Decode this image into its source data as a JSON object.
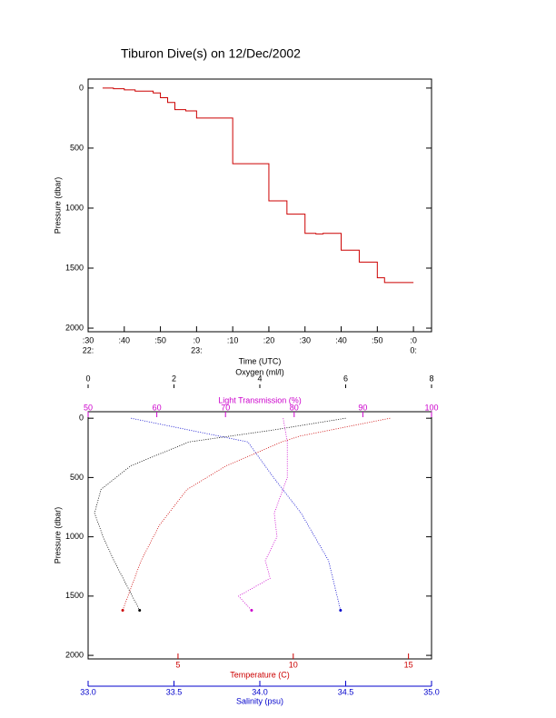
{
  "chart_data": [
    {
      "type": "line",
      "title": "Tiburon Dive(s) on 12/Dec/2002",
      "xlabel": "Time (UTC)",
      "ylabel": "Pressure (dbar)",
      "xlim": [
        30,
        125
      ],
      "ylim": [
        2030,
        -75
      ],
      "xticks": [
        {
          "value": 30,
          "label": ":30"
        },
        {
          "value": 40,
          "label": ":40"
        },
        {
          "value": 50,
          "label": ":50"
        },
        {
          "value": 60,
          "label": ":0"
        },
        {
          "value": 70,
          "label": ":10"
        },
        {
          "value": 80,
          "label": ":20"
        },
        {
          "value": 90,
          "label": ":30"
        },
        {
          "value": 100,
          "label": ":40"
        },
        {
          "value": 110,
          "label": ":50"
        },
        {
          "value": 120,
          "label": ":0"
        }
      ],
      "hour_labels": [
        {
          "value": 30,
          "label": "22:"
        },
        {
          "value": 60,
          "label": "23:"
        },
        {
          "value": 120,
          "label": "0:"
        }
      ],
      "yticks": [
        0,
        500,
        1000,
        1500,
        2000
      ],
      "series": [
        {
          "color": "#cc0000",
          "x": [
            34,
            37,
            40,
            43,
            48,
            50,
            52,
            54,
            57,
            60,
            70,
            80,
            85,
            90,
            93,
            95,
            100,
            105,
            110,
            112,
            120
          ],
          "values": [
            0,
            5,
            15,
            25,
            40,
            80,
            120,
            180,
            190,
            250,
            630,
            940,
            1050,
            1210,
            1215,
            1210,
            1350,
            1450,
            1580,
            1620,
            1620
          ]
        }
      ]
    },
    {
      "type": "profile",
      "ylabel": "Pressure (dbar)",
      "ylim": [
        2030,
        -55
      ],
      "yticks": [
        0,
        500,
        1000,
        1500,
        2000
      ],
      "x_axes": [
        {
          "label": "Oxygen (ml/l)",
          "color": "#000000",
          "xlim": [
            0,
            8
          ],
          "xticks": [
            0,
            2,
            4,
            6,
            8
          ]
        },
        {
          "label": "Light Transmission (%)",
          "color": "#cc00cc",
          "xlim": [
            50,
            100
          ],
          "xticks": [
            50,
            60,
            70,
            80,
            90,
            100
          ]
        },
        {
          "label": "Temperature (C)",
          "color": "#cc0000",
          "xlim": [
            1.1,
            16
          ],
          "xticks": [
            5,
            10,
            15
          ]
        },
        {
          "label": "Salinity (psu)",
          "color": "#0000cc",
          "xlim": [
            33,
            35
          ],
          "xticks": [
            {
              "value": 33,
              "label": "33.0"
            },
            33.5,
            {
              "value": 34,
              "label": "34.0"
            },
            34.5,
            {
              "value": 35,
              "label": "35.0"
            }
          ]
        }
      ],
      "series": [
        {
          "axis": 0,
          "color": "#000000",
          "pressure": [
            0,
            100,
            200,
            400,
            600,
            800,
            1000,
            1200,
            1620
          ],
          "values": [
            6.0,
            4.3,
            2.35,
            1.0,
            0.3,
            0.15,
            0.35,
            0.6,
            1.2
          ]
        },
        {
          "axis": 1,
          "color": "#cc00cc",
          "pressure": [
            0,
            200,
            500,
            800,
            1000,
            1200,
            1350,
            1500,
            1620
          ],
          "values": [
            78.4,
            79,
            79,
            77.1,
            77.5,
            75.8,
            76.5,
            71.9,
            73.8
          ]
        },
        {
          "axis": 2,
          "color": "#cc0000",
          "pressure": [
            0,
            150,
            200,
            400,
            600,
            900,
            1200,
            1620
          ],
          "values": [
            14.2,
            10.3,
            9.5,
            7.1,
            5.4,
            4.2,
            3.4,
            2.6
          ]
        },
        {
          "axis": 3,
          "color": "#0000cc",
          "pressure": [
            0,
            200,
            500,
            800,
            1200,
            1620
          ],
          "values": [
            33.25,
            33.93,
            34.08,
            34.24,
            34.4,
            34.47
          ]
        }
      ]
    }
  ]
}
